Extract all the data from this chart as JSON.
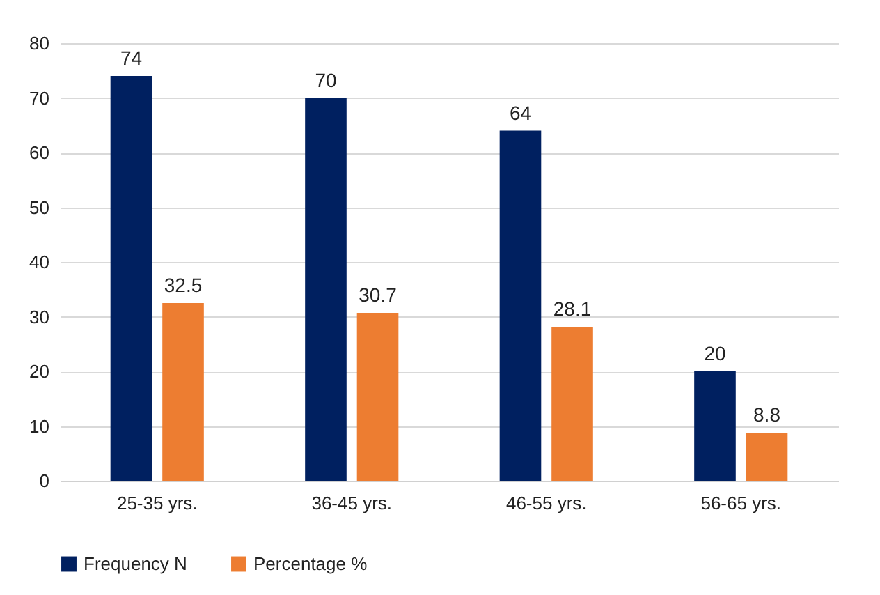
{
  "chart_data": {
    "type": "bar",
    "categories": [
      "25-35 yrs.",
      "36-45 yrs.",
      "46-55 yrs.",
      "56-65 yrs."
    ],
    "series": [
      {
        "name": "Frequency N",
        "color": "#002060",
        "values": [
          74,
          70,
          64,
          20
        ]
      },
      {
        "name": "Percentage %",
        "color": "#ed7d31",
        "values": [
          32.5,
          30.7,
          28.1,
          8.8
        ]
      }
    ],
    "ylim": [
      0,
      80
    ],
    "yticks": [
      0,
      10,
      20,
      30,
      40,
      50,
      60,
      70,
      80
    ],
    "grid": "y",
    "legend": "bottom",
    "data_labels": true
  }
}
